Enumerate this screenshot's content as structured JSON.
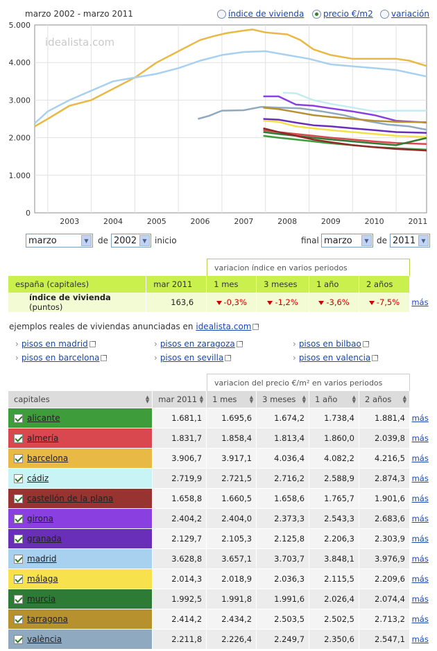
{
  "title": "marzo 2002 - marzo 2011",
  "options": [
    {
      "label": "índice de vivienda",
      "selected": false
    },
    {
      "label": "precio €/m2",
      "selected": true
    },
    {
      "label": "variación",
      "selected": false
    }
  ],
  "watermark": "idealista.com",
  "chart_data": {
    "type": "line",
    "y_ticks": [
      "5.000",
      "4.000",
      "3.000",
      "2.000",
      "1.000",
      "0"
    ],
    "ylim": [
      0,
      5000
    ],
    "x_ticks": [
      "2003",
      "2004",
      "2005",
      "2006",
      "2007",
      "2008",
      "2009",
      "2010",
      "2011"
    ],
    "xlim": [
      2002.2,
      2011.2
    ],
    "grid": true,
    "series": [
      {
        "name": "barcelona",
        "color": "#e8b945",
        "x": [
          2002.2,
          2002.5,
          2003,
          2003.5,
          2004,
          2004.5,
          2005,
          2005.5,
          2006,
          2006.3,
          2006.6,
          2007,
          2007.2,
          2007.5,
          2008,
          2008.3,
          2008.6,
          2009,
          2009.5,
          2010,
          2010.5,
          2010.8,
          2011.2
        ],
        "y": [
          2300,
          2500,
          2850,
          3000,
          3300,
          3600,
          4000,
          4300,
          4600,
          4700,
          4780,
          4850,
          4880,
          4800,
          4750,
          4600,
          4350,
          4200,
          4100,
          4100,
          4100,
          4050,
          3907
        ]
      },
      {
        "name": "madrid",
        "color": "#a8d0ef",
        "x": [
          2002.2,
          2002.5,
          2003,
          2003.5,
          2004,
          2004.5,
          2005,
          2005.5,
          2006,
          2006.5,
          2007,
          2007.5,
          2008,
          2008.5,
          2009,
          2009.5,
          2010,
          2010.5,
          2011.2
        ],
        "y": [
          2380,
          2700,
          3000,
          3250,
          3500,
          3600,
          3700,
          3850,
          4050,
          4200,
          4280,
          4300,
          4200,
          4100,
          3950,
          3900,
          3850,
          3800,
          3629
        ]
      },
      {
        "name": "valència",
        "color": "#8fa9c0",
        "x": [
          2005.95,
          2006.2,
          2006.5,
          2007,
          2007.4,
          2007.8,
          2008.3,
          2008.8,
          2009.3,
          2009.8,
          2010.3,
          2010.8,
          2011.2
        ],
        "y": [
          2500,
          2580,
          2720,
          2730,
          2820,
          2800,
          2780,
          2700,
          2600,
          2450,
          2350,
          2300,
          2212
        ]
      },
      {
        "name": "cádiz",
        "color": "#c3ecf0",
        "x": [
          2007.9,
          2008.2,
          2008.6,
          2009,
          2009.5,
          2010,
          2010.5,
          2011.2
        ],
        "y": [
          3200,
          3180,
          3000,
          2900,
          2800,
          2700,
          2720,
          2720
        ]
      },
      {
        "name": "girona",
        "color": "#8a3fe0",
        "x": [
          2007.45,
          2007.8,
          2008.2,
          2008.6,
          2009,
          2009.5,
          2010,
          2010.5,
          2011.2
        ],
        "y": [
          3100,
          3100,
          2880,
          2850,
          2780,
          2700,
          2600,
          2450,
          2404
        ]
      },
      {
        "name": "tarragona",
        "color": "#b8912f",
        "x": [
          2007.45,
          2007.8,
          2008.2,
          2008.6,
          2009,
          2009.5,
          2010,
          2010.5,
          2011.2
        ],
        "y": [
          2800,
          2760,
          2680,
          2600,
          2550,
          2500,
          2450,
          2420,
          2414
        ]
      },
      {
        "name": "granada",
        "color": "#6a2fb8",
        "x": [
          2007.45,
          2007.8,
          2008.2,
          2008.6,
          2009,
          2009.5,
          2010,
          2010.5,
          2011.2
        ],
        "y": [
          2500,
          2480,
          2400,
          2330,
          2300,
          2250,
          2200,
          2150,
          2130
        ]
      },
      {
        "name": "málaga",
        "color": "#f5e04a",
        "x": [
          2007.45,
          2007.8,
          2008.2,
          2008.6,
          2009,
          2009.5,
          2010,
          2010.5,
          2011.2
        ],
        "y": [
          2450,
          2420,
          2300,
          2250,
          2200,
          2150,
          2100,
          2050,
          2014
        ]
      },
      {
        "name": "alicante",
        "color": "#3e9c3a",
        "x": [
          2007.45,
          2007.8,
          2008.2,
          2008.6,
          2009,
          2009.5,
          2010,
          2010.5,
          2011.2
        ],
        "y": [
          2050,
          2000,
          1950,
          1900,
          1850,
          1800,
          1750,
          1720,
          1681
        ]
      },
      {
        "name": "almería",
        "color": "#d9474f",
        "x": [
          2007.45,
          2007.8,
          2008.2,
          2008.6,
          2009,
          2009.5,
          2010,
          2010.5,
          2011.2
        ],
        "y": [
          2200,
          2150,
          2100,
          2050,
          2000,
          1950,
          1900,
          1860,
          1832
        ]
      },
      {
        "name": "murcia",
        "color": "#2e7b36",
        "x": [
          2007.45,
          2007.8,
          2008.2,
          2008.6,
          2009,
          2009.5,
          2010,
          2010.5,
          2011.2
        ],
        "y": [
          2150,
          2100,
          2050,
          2000,
          1950,
          1900,
          1850,
          1800,
          1993
        ]
      },
      {
        "name": "castellón de la plana",
        "color": "#8e2a28",
        "x": [
          2007.45,
          2007.8,
          2008.2,
          2008.6,
          2009,
          2009.5,
          2010,
          2010.5,
          2011.2
        ],
        "y": [
          2250,
          2150,
          2050,
          1950,
          1880,
          1800,
          1750,
          1700,
          1659
        ]
      }
    ]
  },
  "period": {
    "de_label": "de",
    "inicio_label": "inicio",
    "final_label": "final",
    "start_month": "marzo",
    "start_year": "2002",
    "end_month": "marzo",
    "end_year": "2011"
  },
  "summary": {
    "band_label": "variacion índice en varios periodos",
    "headers": [
      "españa (capitales)",
      "mar 2011",
      "1 mes",
      "3 meses",
      "1 año",
      "2 años"
    ],
    "row": {
      "name": "índice de vivienda",
      "unit": "(puntos)",
      "value": "163,6",
      "variations": [
        "-0,3%",
        "-1,2%",
        "-3,6%",
        "-7,5%"
      ],
      "more": "más"
    }
  },
  "examples": {
    "text": "ejemplos reales de viviendas anunciadas en",
    "site": "idealista.com",
    "links": [
      "pisos en madrid",
      "pisos en zaragoza",
      "pisos en bilbao",
      "pisos en barcelona",
      "pisos en sevilla",
      "pisos en valencia"
    ]
  },
  "prices": {
    "band_label": "variacion del precio €/m² en varios periodos",
    "headers": [
      "capitales",
      "mar 2011",
      "1 mes",
      "3 meses",
      "1 año",
      "2 años"
    ],
    "rows": [
      {
        "city": "alicante",
        "color": "#3e9c3a",
        "vals": [
          "1.681,1",
          "1.695,6",
          "1.674,2",
          "1.738,4",
          "1.881,4"
        ],
        "more": "más"
      },
      {
        "city": "almería",
        "color": "#d9474f",
        "vals": [
          "1.831,7",
          "1.858,4",
          "1.813,4",
          "1.860,0",
          "2.039,8"
        ],
        "more": "más"
      },
      {
        "city": "barcelona",
        "color": "#e8b945",
        "vals": [
          "3.906,7",
          "3.917,1",
          "4.036,4",
          "4.082,2",
          "4.216,5"
        ],
        "more": "más"
      },
      {
        "city": "cádiz",
        "color": "#c8f4f6",
        "vals": [
          "2.719,9",
          "2.721,5",
          "2.716,2",
          "2.588,9",
          "2.874,3"
        ],
        "more": "más"
      },
      {
        "city": "castellón de la plana",
        "color": "#973330",
        "vals": [
          "1.658,8",
          "1.660,5",
          "1.658,6",
          "1.765,7",
          "1.901,6"
        ],
        "more": "más"
      },
      {
        "city": "girona",
        "color": "#8a3fe0",
        "vals": [
          "2.404,2",
          "2.404,0",
          "2.373,3",
          "2.543,3",
          "2.683,6"
        ],
        "more": "más"
      },
      {
        "city": "granada",
        "color": "#6a2fb8",
        "vals": [
          "2.129,7",
          "2.105,3",
          "2.125,8",
          "2.206,3",
          "2.303,9"
        ],
        "more": "más"
      },
      {
        "city": "madrid",
        "color": "#a8d0ef",
        "vals": [
          "3.628,8",
          "3.657,1",
          "3.703,7",
          "3.848,1",
          "3.976,9"
        ],
        "more": "más"
      },
      {
        "city": "málaga",
        "color": "#f7e24e",
        "vals": [
          "2.014,3",
          "2.018,9",
          "2.036,3",
          "2.115,5",
          "2.209,6"
        ],
        "more": "más"
      },
      {
        "city": "murcia",
        "color": "#2e7b36",
        "vals": [
          "1.992,5",
          "1.991,8",
          "1.991,6",
          "2.026,4",
          "2.074,4"
        ],
        "more": "más"
      },
      {
        "city": "tarragona",
        "color": "#b8912f",
        "vals": [
          "2.414,2",
          "2.434,2",
          "2.503,5",
          "2.502,5",
          "2.713,2"
        ],
        "more": "más"
      },
      {
        "city": "valència",
        "color": "#8fa9c0",
        "vals": [
          "2.211,8",
          "2.226,4",
          "2.249,7",
          "2.350,6",
          "2.547,1"
        ],
        "more": "más"
      }
    ]
  }
}
